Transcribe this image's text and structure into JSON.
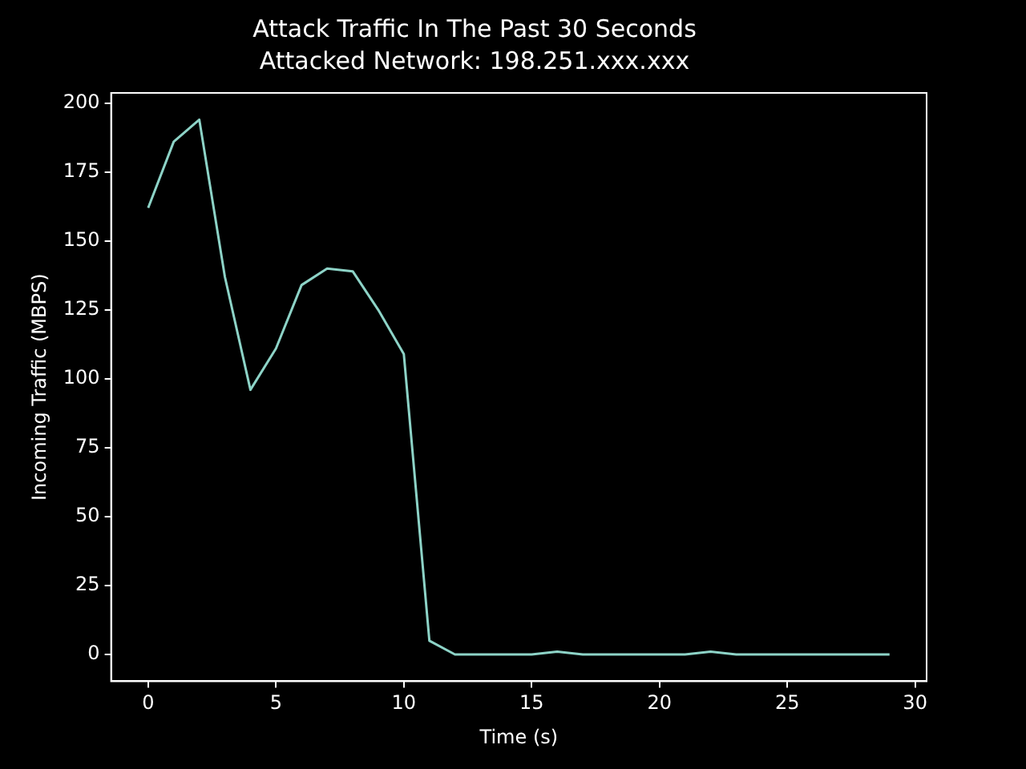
{
  "chart_data": {
    "type": "line",
    "title": "Attack Traffic In The Past 30 Seconds",
    "subtitle": "Attacked Network: 198.251.xxx.xxx",
    "xlabel": "Time (s)",
    "ylabel": "Incoming Traffic (MBPS)",
    "x": [
      0,
      1,
      2,
      3,
      4,
      5,
      6,
      7,
      8,
      9,
      10,
      11,
      12,
      13,
      14,
      15,
      16,
      17,
      18,
      19,
      20,
      21,
      22,
      23,
      24,
      25,
      26,
      27,
      28,
      29
    ],
    "series": [
      {
        "color": "#8dd3c7",
        "values": [
          162,
          186,
          194,
          137,
          96,
          111,
          134,
          140,
          139,
          125,
          109,
          5,
          0,
          0,
          0,
          0,
          1,
          0,
          0,
          0,
          0,
          0,
          1,
          0,
          0,
          0,
          0,
          0,
          0,
          0
        ]
      }
    ],
    "xlim": [
      -1.45,
      30.45
    ],
    "ylim": [
      -9.7,
      203.7
    ],
    "xticks": [
      0,
      5,
      10,
      15,
      20,
      25,
      30
    ],
    "yticks": [
      0,
      25,
      50,
      75,
      100,
      125,
      150,
      175,
      200
    ],
    "grid": false,
    "legend": false,
    "marker": "none",
    "line_style": "solid"
  }
}
